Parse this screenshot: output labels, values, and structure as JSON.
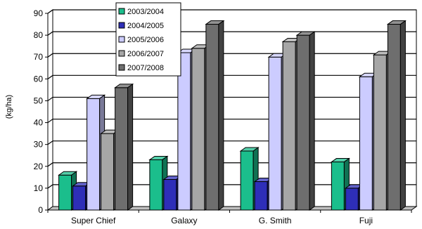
{
  "chart_data": {
    "type": "bar",
    "style": "3d-clustered-column",
    "categories": [
      "Super Chief",
      "Galaxy",
      "G. Smith",
      "Fuji"
    ],
    "series": [
      {
        "name": "2003/2004",
        "color": "#1BBE8C",
        "values": [
          16,
          23,
          27,
          22
        ]
      },
      {
        "name": "2004/2005",
        "color": "#2E2EB8",
        "values": [
          11,
          14,
          13,
          10
        ]
      },
      {
        "name": "2005/2006",
        "color": "#CCCCFF",
        "values": [
          51,
          72,
          70,
          61
        ]
      },
      {
        "name": "2006/2007",
        "color": "#A6A6A6",
        "values": [
          35,
          74,
          77,
          71
        ]
      },
      {
        "name": "2007/2008",
        "color": "#6E6E6E",
        "values": [
          56,
          85,
          80,
          85
        ]
      }
    ],
    "ylabel": "(kg/ha)",
    "xlabel": "",
    "ylim": [
      0,
      90
    ],
    "yticks": [
      0,
      10,
      20,
      30,
      40,
      50,
      60,
      70,
      80,
      90
    ],
    "grid": true,
    "legend": "top-left"
  }
}
